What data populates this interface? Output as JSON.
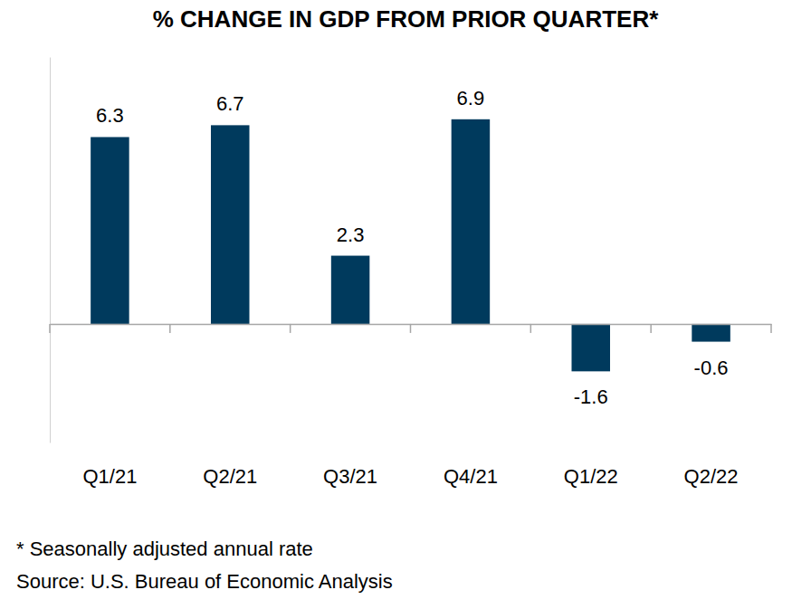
{
  "chart_data": {
    "type": "bar",
    "title": "% CHANGE IN GDP FROM PRIOR QUARTER*",
    "categories": [
      "Q1/21",
      "Q2/21",
      "Q3/21",
      "Q4/21",
      "Q1/22",
      "Q2/22"
    ],
    "values": [
      6.3,
      6.7,
      2.3,
      6.9,
      -1.6,
      -0.6
    ],
    "color": "#003a5d",
    "ylim": [
      -4,
      9
    ],
    "grid": false,
    "data_labels": true,
    "tick_labels": "x",
    "annotations": [
      "* Seasonally adjusted annual rate",
      "Source: U.S. Bureau of Economic Analysis"
    ]
  }
}
